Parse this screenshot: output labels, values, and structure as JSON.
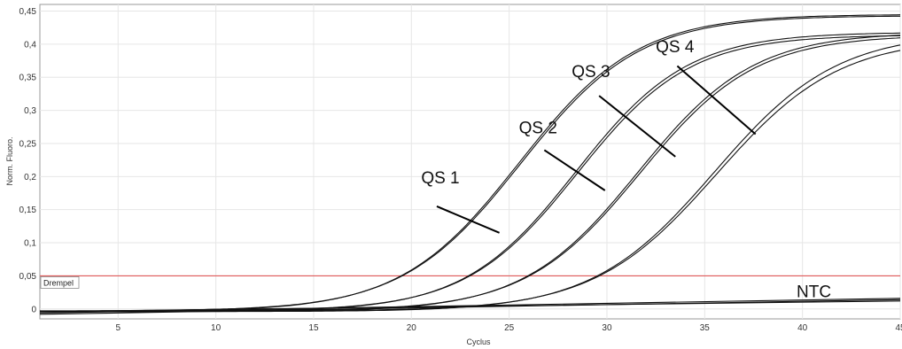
{
  "chart_data": {
    "type": "line",
    "xlabel": "Cyclus",
    "ylabel": "Norm. Fluoro.",
    "xlim": [
      1,
      45
    ],
    "ylim": [
      -0.015,
      0.46
    ],
    "x_ticks": [
      5,
      10,
      15,
      20,
      25,
      30,
      35,
      40,
      45
    ],
    "x_tick_labels": [
      "5",
      "10",
      "15",
      "20",
      "25",
      "30",
      "35",
      "40",
      "45"
    ],
    "y_ticks": [
      0,
      0.05,
      0.1,
      0.15,
      0.2,
      0.25,
      0.3,
      0.35,
      0.4,
      0.45
    ],
    "y_tick_labels": [
      "0",
      "0,05",
      "0,1",
      "0,15",
      "0,2",
      "0,25",
      "0,3",
      "0,35",
      "0,4",
      "0,45"
    ],
    "grid": true,
    "threshold": {
      "label": "Drempel",
      "value": 0.05,
      "color": "#e05a5a"
    },
    "series_color": "#111111",
    "series": [
      {
        "name": "QS 1",
        "label": "QS 1",
        "label_at": [
          20.5,
          0.19
        ],
        "pointer_from": [
          21.3,
          0.155
        ],
        "pointer_to": [
          24.5,
          0.115
        ],
        "replicates": [
          {
            "top": 0.445,
            "mid": 25.5,
            "k": 0.33,
            "base": -0.004
          },
          {
            "top": 0.443,
            "mid": 25.6,
            "k": 0.33,
            "base": -0.003
          }
        ]
      },
      {
        "name": "QS 2",
        "label": "QS 2",
        "label_at": [
          25.5,
          0.265
        ],
        "pointer_from": [
          26.8,
          0.24
        ],
        "pointer_to": [
          29.9,
          0.179
        ],
        "replicates": [
          {
            "top": 0.418,
            "mid": 28.4,
            "k": 0.35,
            "base": -0.004
          },
          {
            "top": 0.414,
            "mid": 28.5,
            "k": 0.35,
            "base": -0.003
          }
        ]
      },
      {
        "name": "QS 3",
        "label": "QS 3",
        "label_at": [
          28.2,
          0.35
        ],
        "pointer_from": [
          29.6,
          0.322
        ],
        "pointer_to": [
          33.5,
          0.23
        ],
        "replicates": [
          {
            "top": 0.418,
            "mid": 31.6,
            "k": 0.34,
            "base": -0.004
          },
          {
            "top": 0.414,
            "mid": 31.7,
            "k": 0.34,
            "base": -0.003
          }
        ]
      },
      {
        "name": "QS 4",
        "label": "QS 4",
        "label_at": [
          32.5,
          0.388
        ],
        "pointer_from": [
          33.6,
          0.367
        ],
        "pointer_to": [
          37.6,
          0.264
        ],
        "replicates": [
          {
            "top": 0.418,
            "mid": 35.5,
            "k": 0.32,
            "base": -0.004
          },
          {
            "top": 0.41,
            "mid": 35.6,
            "k": 0.32,
            "base": -0.003
          }
        ]
      },
      {
        "name": "NTC",
        "label": "NTC",
        "label_at": [
          39.7,
          0.018
        ],
        "ntc_lines": [
          {
            "x": [
              1,
              45
            ],
            "y": [
              -0.006,
              0.016
            ]
          },
          {
            "x": [
              1,
              45
            ],
            "y": [
              -0.004,
              0.012
            ]
          },
          {
            "x": [
              1,
              45
            ],
            "y": [
              -0.008,
              0.014
            ]
          }
        ]
      }
    ]
  }
}
